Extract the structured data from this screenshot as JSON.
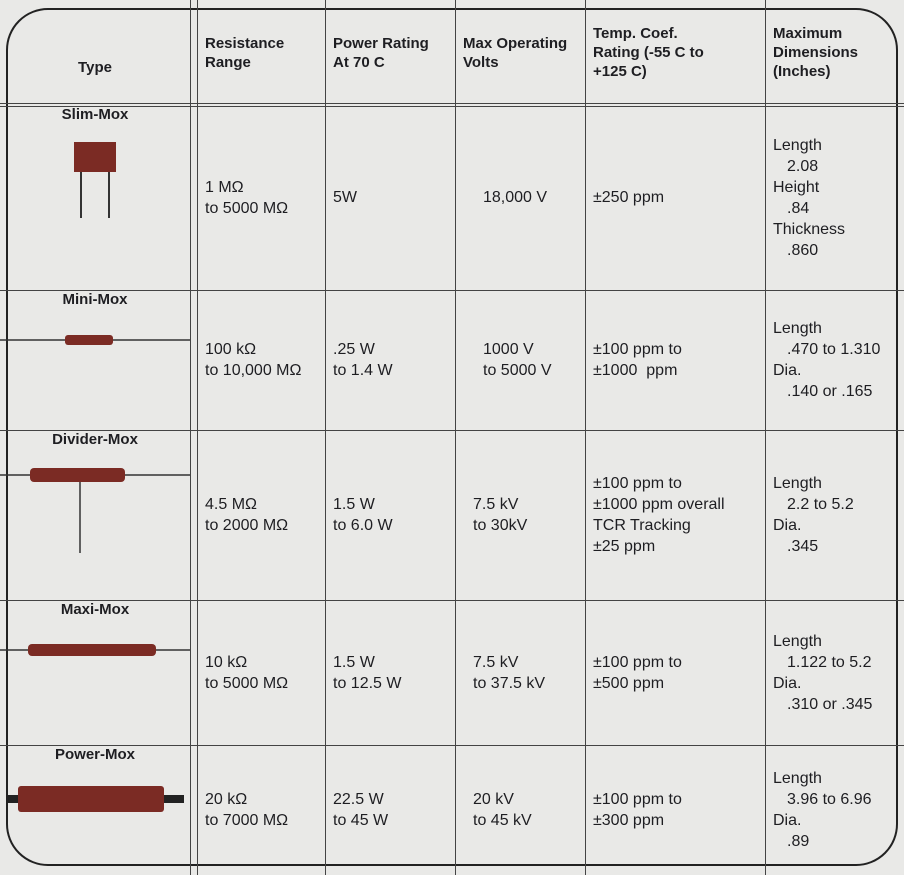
{
  "table": {
    "headers": [
      [
        "Type"
      ],
      [
        "Resistance",
        "Range"
      ],
      [
        "Power Rating",
        "At 70 C"
      ],
      [
        "Max Operating",
        "Volts"
      ],
      [
        "Temp. Coef.",
        "Rating (-55 C to",
        "+125 C)"
      ],
      [
        "Maximum",
        "Dimensions",
        "(Inches)"
      ]
    ],
    "rows": [
      {
        "type": "Slim-Mox",
        "resistance": [
          "1 MΩ",
          "to 5000 MΩ"
        ],
        "power": [
          "5W"
        ],
        "volts": [
          "18,000 V"
        ],
        "tcr": [
          "±250 ppm"
        ],
        "dimensions": [
          {
            "label": "Length",
            "value": "2.08"
          },
          {
            "label": "Height",
            "value": ".84"
          },
          {
            "label": "Thickness",
            "value": ".860"
          }
        ]
      },
      {
        "type": "Mini-Mox",
        "resistance": [
          "100 kΩ",
          "to 10,000 MΩ"
        ],
        "power": [
          ".25 W",
          "to 1.4 W"
        ],
        "volts": [
          "1000 V",
          "to 5000 V"
        ],
        "tcr": [
          "±100 ppm to",
          "±1000  ppm"
        ],
        "dimensions": [
          {
            "label": "Length",
            "value": ".470 to 1.310"
          },
          {
            "label": "Dia.",
            "value": ".140 or .165"
          }
        ]
      },
      {
        "type": "Divider-Mox",
        "resistance": [
          "4.5 MΩ",
          "to 2000 MΩ"
        ],
        "power": [
          "1.5 W",
          "to 6.0 W"
        ],
        "volts": [
          "7.5 kV",
          "to 30kV"
        ],
        "tcr": [
          "±100 ppm to",
          "±1000 ppm overall",
          "TCR Tracking",
          "±25 ppm"
        ],
        "dimensions": [
          {
            "label": "Length",
            "value": "2.2 to 5.2"
          },
          {
            "label": "Dia.",
            "value": ".345"
          }
        ]
      },
      {
        "type": "Maxi-Mox",
        "resistance": [
          "10 kΩ",
          "to 5000 MΩ"
        ],
        "power": [
          "1.5 W",
          "to 12.5 W"
        ],
        "volts": [
          "7.5 kV",
          "to 37.5 kV"
        ],
        "tcr": [
          "±100 ppm to",
          "±500 ppm"
        ],
        "dimensions": [
          {
            "label": "Length",
            "value": "1.122 to 5.2"
          },
          {
            "label": "Dia.",
            "value": ".310 or .345"
          }
        ]
      },
      {
        "type": "Power-Mox",
        "resistance": [
          "20 kΩ",
          "to 7000 MΩ"
        ],
        "power": [
          "22.5 W",
          "to 45 W"
        ],
        "volts": [
          "20 kV",
          "to 45 kV"
        ],
        "tcr": [
          "±100 ppm to",
          "±300 ppm"
        ],
        "dimensions": [
          {
            "label": "Length",
            "value": "3.96 to 6.96"
          },
          {
            "label": "Dia.",
            "value": ".89"
          }
        ]
      }
    ]
  }
}
